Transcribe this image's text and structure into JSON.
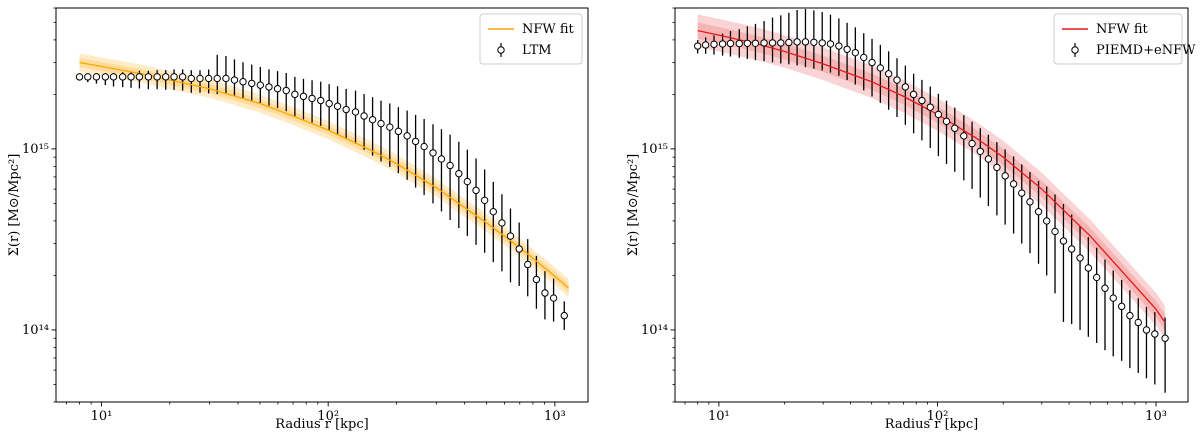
{
  "chart_data": [
    {
      "type": "scatter",
      "scale": "log-log",
      "xlabel": "Radius r [kpc]",
      "ylabel": "Σ(r) [M⊙/Mpc²]",
      "xlim": [
        6.3,
        1400
      ],
      "ylim": [
        40000000000000.0,
        6000000000000000.0
      ],
      "xticks": [
        {
          "value": 10,
          "label": "10¹"
        },
        {
          "value": 100,
          "label": "10²"
        },
        {
          "value": 1000,
          "label": "10³"
        }
      ],
      "yticks": [
        {
          "value": 100000000000000.0,
          "label": "10¹⁴"
        },
        {
          "value": 1000000000000000.0,
          "label": "10¹⁵"
        }
      ],
      "legend_position": "top-right",
      "series": [
        {
          "name": "NFW fit",
          "kind": "line",
          "color": "#ffa500",
          "band_color": "#ffd27f",
          "x": [
            8,
            10,
            15,
            20,
            30,
            50,
            70,
            100,
            150,
            200,
            300,
            500,
            700,
            1000,
            1150
          ],
          "y": [
            3000000000000000.0,
            2850000000000000.0,
            2600000000000000.0,
            2400000000000000.0,
            2150000000000000.0,
            1780000000000000.0,
            1520000000000000.0,
            1270000000000000.0,
            1000000000000000.0,
            830000000000000.0,
            610000000000000.0,
            390000000000000.0,
            285000000000000.0,
            198000000000000.0,
            170000000000000.0
          ],
          "band_width": 0.05
        },
        {
          "name": "LTM",
          "kind": "errorbar",
          "color": "#000000",
          "x": [
            8.0,
            8.7,
            9.5,
            10.4,
            11.3,
            12.4,
            13.5,
            14.7,
            16.1,
            17.6,
            19.2,
            20.9,
            22.8,
            24.9,
            27.2,
            29.7,
            32.4,
            35.4,
            38.6,
            42.1,
            46.0,
            50.2,
            54.8,
            59.8,
            65.3,
            71.3,
            77.8,
            84.9,
            92.7,
            101,
            110,
            120,
            132,
            144,
            157,
            171,
            187,
            204,
            223,
            243,
            265,
            290,
            316,
            345,
            377,
            411,
            449,
            490,
            535,
            584,
            637,
            696,
            759,
            829,
            904,
            987,
            1100
          ],
          "y": [
            2500000000000000.0,
            2500000000000000.0,
            2500000000000000.0,
            2500000000000000.0,
            2500000000000000.0,
            2500000000000000.0,
            2500000000000000.0,
            2500000000000000.0,
            2500000000000000.0,
            2500000000000000.0,
            2500000000000000.0,
            2500000000000000.0,
            2500000000000000.0,
            2450000000000000.0,
            2450000000000000.0,
            2450000000000000.0,
            2450000000000000.0,
            2450000000000000.0,
            2400000000000000.0,
            2350000000000000.0,
            2300000000000000.0,
            2250000000000000.0,
            2200000000000000.0,
            2150000000000000.0,
            2100000000000000.0,
            2000000000000000.0,
            1950000000000000.0,
            1900000000000000.0,
            1850000000000000.0,
            1780000000000000.0,
            1720000000000000.0,
            1650000000000000.0,
            1600000000000000.0,
            1520000000000000.0,
            1450000000000000.0,
            1380000000000000.0,
            1320000000000000.0,
            1250000000000000.0,
            1180000000000000.0,
            1100000000000000.0,
            1030000000000000.0,
            950000000000000.0,
            880000000000000.0,
            810000000000000.0,
            730000000000000.0,
            660000000000000.0,
            590000000000000.0,
            520000000000000.0,
            450000000000000.0,
            390000000000000.0,
            330000000000000.0,
            280000000000000.0,
            230000000000000.0,
            190000000000000.0,
            160000000000000.0,
            150000000000000.0,
            120000000000000.0
          ],
          "yerr_low_factor": [
            1.05,
            1.07,
            1.09,
            1.11,
            1.13,
            1.14,
            1.15,
            1.16,
            1.17,
            1.17,
            1.18,
            1.18,
            1.19,
            1.2,
            1.2,
            1.21,
            1.22,
            1.22,
            1.23,
            1.24,
            1.25,
            1.26,
            1.27,
            1.28,
            1.3,
            1.32,
            1.34,
            1.36,
            1.38,
            1.4,
            1.43,
            1.46,
            1.5,
            1.54,
            1.58,
            1.62,
            1.66,
            1.7,
            1.75,
            1.8,
            1.85,
            1.9,
            1.95,
            2.0,
            2.0,
            2.0,
            2.0,
            1.95,
            1.9,
            1.85,
            1.8,
            1.6,
            1.5,
            1.45,
            1.4,
            1.35,
            1.2
          ],
          "yerr_high_factor": [
            1.02,
            1.02,
            1.03,
            1.04,
            1.05,
            1.06,
            1.07,
            1.08,
            1.08,
            1.09,
            1.09,
            1.1,
            1.1,
            1.11,
            1.11,
            1.12,
            1.35,
            1.33,
            1.3,
            1.28,
            1.27,
            1.26,
            1.25,
            1.25,
            1.25,
            1.25,
            1.25,
            1.26,
            1.27,
            1.28,
            1.29,
            1.3,
            1.31,
            1.32,
            1.33,
            1.34,
            1.35,
            1.36,
            1.38,
            1.4,
            1.42,
            1.44,
            1.46,
            1.48,
            1.5,
            1.5,
            1.5,
            1.48,
            1.46,
            1.44,
            1.42,
            1.4,
            1.38,
            1.35,
            1.32,
            1.28,
            1.2
          ]
        }
      ]
    },
    {
      "type": "scatter",
      "scale": "log-log",
      "xlabel": "Radius r [kpc]",
      "ylabel": "Σ(r) [M⊙/Mpc²]",
      "xlim": [
        6.3,
        1400
      ],
      "ylim": [
        40000000000000.0,
        6000000000000000.0
      ],
      "xticks": [
        {
          "value": 10,
          "label": "10¹"
        },
        {
          "value": 100,
          "label": "10²"
        },
        {
          "value": 1000,
          "label": "10³"
        }
      ],
      "yticks": [
        {
          "value": 100000000000000.0,
          "label": "10¹⁴"
        },
        {
          "value": 1000000000000000.0,
          "label": "10¹⁵"
        }
      ],
      "legend_position": "top-right",
      "series": [
        {
          "name": "NFW fit",
          "kind": "line",
          "color": "#e31a1c",
          "band_color": "#f4a0a0",
          "x": [
            8,
            10,
            15,
            20,
            30,
            50,
            70,
            100,
            150,
            200,
            300,
            500,
            700,
            1000,
            1100
          ],
          "y": [
            4500000000000000.0,
            4250000000000000.0,
            3800000000000000.0,
            3450000000000000.0,
            2950000000000000.0,
            2350000000000000.0,
            1950000000000000.0,
            1550000000000000.0,
            1150000000000000.0,
            900000000000000.0,
            600000000000000.0,
            330000000000000.0,
            210000000000000.0,
            130000000000000.0,
            110000000000000.0
          ],
          "band_width": 0.09
        },
        {
          "name": "PIEMD+eNFW",
          "kind": "errorbar",
          "color": "#000000",
          "x": [
            8.0,
            8.7,
            9.5,
            10.4,
            11.3,
            12.4,
            13.5,
            14.7,
            16.1,
            17.6,
            19.2,
            20.9,
            22.8,
            24.9,
            27.2,
            29.7,
            32.4,
            35.4,
            38.6,
            42.1,
            46.0,
            50.2,
            54.8,
            59.8,
            65.3,
            71.3,
            77.8,
            84.9,
            92.7,
            101,
            110,
            120,
            132,
            144,
            157,
            171,
            187,
            204,
            223,
            243,
            265,
            290,
            316,
            345,
            377,
            411,
            449,
            490,
            535,
            584,
            637,
            696,
            759,
            829,
            904,
            987,
            1100
          ],
          "y": [
            3700000000000000.0,
            3750000000000000.0,
            3780000000000000.0,
            3800000000000000.0,
            3820000000000000.0,
            3820000000000000.0,
            3830000000000000.0,
            3830000000000000.0,
            3850000000000000.0,
            3850000000000000.0,
            3850000000000000.0,
            3870000000000000.0,
            3900000000000000.0,
            3900000000000000.0,
            3880000000000000.0,
            3850000000000000.0,
            3800000000000000.0,
            3700000000000000.0,
            3550000000000000.0,
            3400000000000000.0,
            3200000000000000.0,
            3000000000000000.0,
            2800000000000000.0,
            2600000000000000.0,
            2400000000000000.0,
            2200000000000000.0,
            2000000000000000.0,
            1850000000000000.0,
            1700000000000000.0,
            1550000000000000.0,
            1420000000000000.0,
            1300000000000000.0,
            1180000000000000.0,
            1070000000000000.0,
            970000000000000.0,
            880000000000000.0,
            790000000000000.0,
            710000000000000.0,
            640000000000000.0,
            570000000000000.0,
            510000000000000.0,
            450000000000000.0,
            400000000000000.0,
            350000000000000.0,
            310000000000000.0,
            280000000000000.0,
            250000000000000.0,
            220000000000000.0,
            195000000000000.0,
            170000000000000.0,
            150000000000000.0,
            135000000000000.0,
            120000000000000.0,
            110000000000000.0,
            100000000000000.0,
            95000000000000.0,
            90000000000000.0
          ],
          "yerr_low_factor": [
            1.1,
            1.12,
            1.14,
            1.16,
            1.18,
            1.2,
            1.22,
            1.24,
            1.26,
            1.28,
            1.3,
            1.32,
            1.35,
            1.38,
            1.4,
            1.42,
            1.44,
            1.46,
            1.48,
            1.5,
            1.52,
            1.54,
            1.56,
            1.58,
            1.6,
            1.62,
            1.64,
            1.66,
            1.68,
            1.7,
            1.72,
            1.74,
            1.76,
            1.78,
            1.8,
            1.82,
            1.84,
            1.86,
            1.88,
            1.9,
            1.92,
            1.94,
            2.0,
            2.2,
            2.8,
            2.6,
            2.5,
            2.4,
            2.3,
            2.2,
            2.1,
            2.0,
            1.95,
            1.9,
            1.85,
            1.9,
            2.0
          ],
          "yerr_high_factor": [
            1.08,
            1.1,
            1.12,
            1.14,
            1.17,
            1.2,
            1.24,
            1.28,
            1.32,
            1.38,
            1.42,
            1.46,
            1.5,
            1.52,
            1.5,
            1.48,
            1.45,
            1.42,
            1.4,
            1.38,
            1.36,
            1.35,
            1.34,
            1.33,
            1.32,
            1.31,
            1.3,
            1.3,
            1.3,
            1.3,
            1.3,
            1.3,
            1.3,
            1.32,
            1.34,
            1.36,
            1.38,
            1.4,
            1.42,
            1.44,
            1.46,
            1.48,
            1.55,
            1.6,
            1.6,
            1.55,
            1.5,
            1.48,
            1.46,
            1.44,
            1.42,
            1.4,
            1.38,
            1.36,
            1.34,
            1.32,
            1.3
          ]
        }
      ]
    }
  ]
}
